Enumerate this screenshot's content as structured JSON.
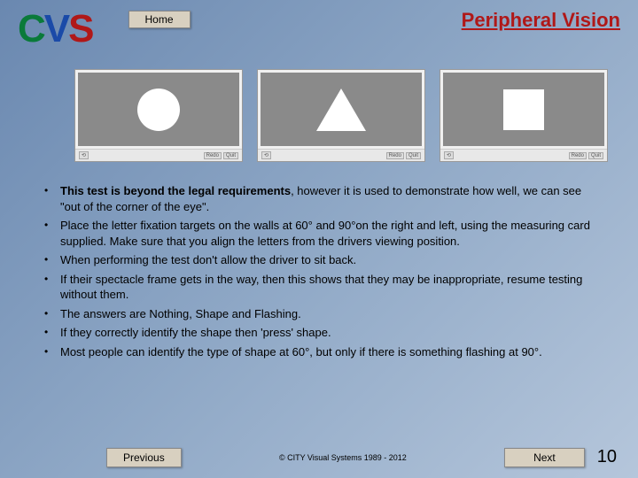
{
  "header": {
    "logo": {
      "c": "C",
      "v": "V",
      "s": "S"
    },
    "home_label": "Home",
    "title": "Peripheral Vision"
  },
  "panels": [
    {
      "shape": "circle",
      "tb_left": "⟲",
      "tb_r1": "Redo",
      "tb_r2": "Quit"
    },
    {
      "shape": "triangle",
      "tb_left": "⟲",
      "tb_r1": "Redo",
      "tb_r2": "Quit"
    },
    {
      "shape": "square",
      "tb_left": "⟲",
      "tb_r1": "Redo",
      "tb_r2": "Quit"
    }
  ],
  "bullets": [
    {
      "lead": "This test is beyond the legal requirements",
      "rest": ", however it is used to demonstrate how well, we can see \"out of the corner of the eye\"."
    },
    {
      "lead": "",
      "rest": "Place the letter fixation targets on the walls at 60° and 90°on the right and left, using the measuring card supplied.  Make sure that you align the letters from the drivers viewing position."
    },
    {
      "lead": "",
      "rest": "When performing the test don't allow the driver to sit back."
    },
    {
      "lead": "",
      "rest": "If their spectacle frame gets in the way, then this shows that they may be inappropriate, resume testing without them."
    },
    {
      "lead": "",
      "rest": "The answers are Nothing, Shape and Flashing."
    },
    {
      "lead": "",
      "rest": "If they correctly identify the shape then 'press' shape."
    },
    {
      "lead": "",
      "rest": "Most people can identify the type of shape at 60°, but only if there is something flashing at 90°."
    }
  ],
  "footer": {
    "prev_label": "Previous",
    "next_label": "Next",
    "copyright": "© CITY Visual Systems 1989 - 2012",
    "page_number": "10"
  }
}
